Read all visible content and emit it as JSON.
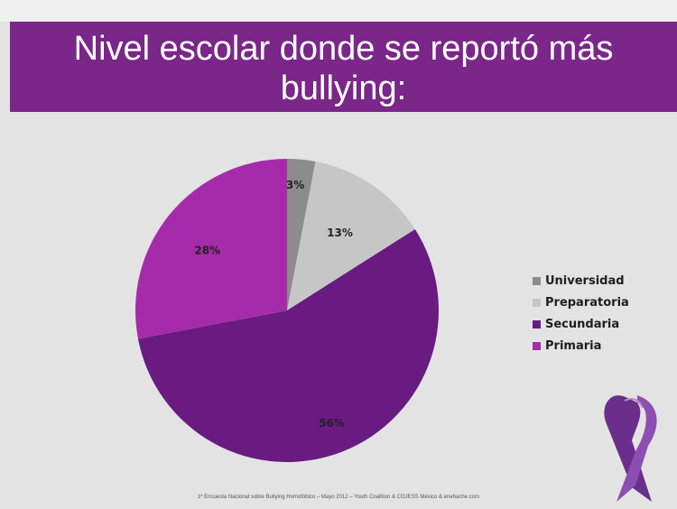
{
  "slide": {
    "title": "Nivel escolar donde se reportó más bullying:",
    "footnote": "1ª Encuesta Nacional sobre Bullying Homofóbico – Mayo 2012 – Youth Coalition & COJESS México & enehache.com"
  },
  "colors": {
    "title_band": "#7a2789",
    "background": "#e4e3e4"
  },
  "chart_data": {
    "type": "pie",
    "title": "",
    "start": "12 o'clock, clockwise",
    "categories": [
      "Universidad",
      "Preparatoria",
      "Secundaria",
      "Primaria"
    ],
    "values": [
      3,
      13,
      56,
      28
    ],
    "labels": [
      "3%",
      "13%",
      "56%",
      "28%"
    ],
    "colors": [
      "#8c8c8c",
      "#c6c6c6",
      "#6a1b82",
      "#a62bab"
    ],
    "legend": {
      "position": "right"
    }
  },
  "icons": {
    "ribbon": "awareness-ribbon-icon"
  }
}
